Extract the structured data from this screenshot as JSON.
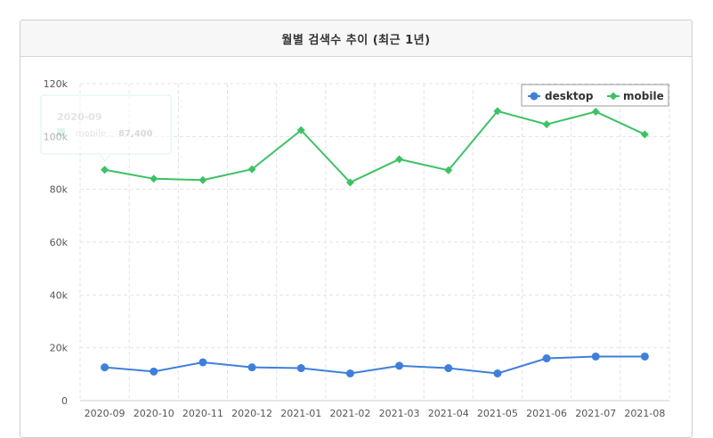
{
  "header": {
    "title": "월별 검색수 추이 (최근 1년)"
  },
  "colors": {
    "desktop": "#3f7fdb",
    "mobile": "#3cc265",
    "grid": "#e3e3e3"
  },
  "tooltip": {
    "period": "2020-09",
    "series": "mobile",
    "value": "87,400"
  },
  "chart_data": {
    "type": "line",
    "categories": [
      "2020-09",
      "2020-10",
      "2020-11",
      "2020-12",
      "2021-01",
      "2021-02",
      "2021-03",
      "2021-04",
      "2021-05",
      "2021-06",
      "2021-07",
      "2021-08"
    ],
    "series": [
      {
        "name": "desktop",
        "values": [
          12600,
          11000,
          14500,
          12600,
          12300,
          10300,
          13200,
          12300,
          10300,
          16000,
          16700,
          16700
        ]
      },
      {
        "name": "mobile",
        "values": [
          87400,
          84000,
          83500,
          87600,
          102400,
          82600,
          91400,
          87200,
          109600,
          104600,
          109400,
          100800
        ]
      }
    ],
    "yticks": [
      "0",
      "20k",
      "40k",
      "60k",
      "80k",
      "100k",
      "120k"
    ],
    "ylim": [
      0,
      120000
    ],
    "grid": true,
    "legend": "top-right"
  }
}
